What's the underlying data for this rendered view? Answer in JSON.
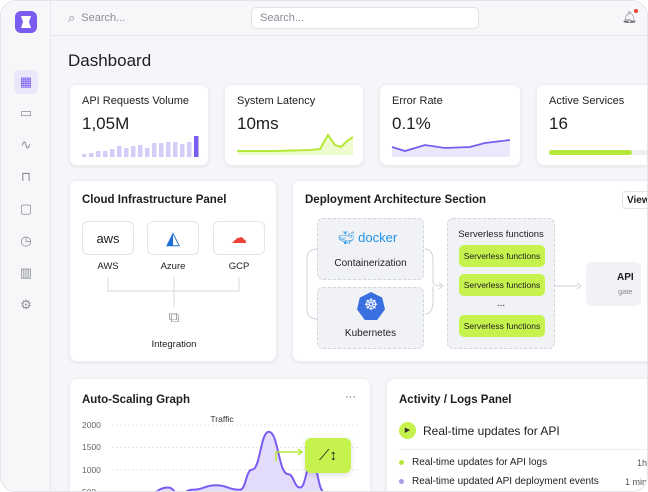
{
  "topbar": {
    "search_left": "Search...",
    "search_center_placeholder": "Search..."
  },
  "page_title": "Dashboard",
  "colors": {
    "accent": "#7b5cf0",
    "lime": "#c6f24d"
  },
  "metrics": [
    {
      "title": "API Requests Volume",
      "value": "1,05M"
    },
    {
      "title": "System Latency",
      "value": "10ms"
    },
    {
      "title": "Error Rate",
      "value": "0.1%"
    },
    {
      "title": "Active Services",
      "value": "16",
      "progress_percent": 75
    }
  ],
  "cloud": {
    "title": "Cloud Infrastructure Panel",
    "providers": [
      {
        "logo": "aws",
        "label": "AWS"
      },
      {
        "label": "Azure"
      },
      {
        "label": "GCP"
      }
    ],
    "integration": "Integration"
  },
  "deploy": {
    "title": "Deployment Architecture Section",
    "view": "View",
    "docker": "docker",
    "containerization": "Containerization",
    "kubernetes": "Kubernetes",
    "serverless_title": "Serverless functions",
    "functions": [
      "Serverless functions",
      "Serverless functions",
      "Serverless functions"
    ],
    "ellipsis": "...",
    "api": "API",
    "api_sub": "gate"
  },
  "autoscale": {
    "title": "Auto-Scaling Graph",
    "more": "···"
  },
  "chart_data": {
    "type": "area",
    "title": "Traffic",
    "yticks": [
      "2000",
      "1500",
      "1000",
      "500"
    ],
    "ylim": [
      500,
      2000
    ],
    "x": [
      0,
      10,
      20,
      25,
      30,
      40,
      50,
      55,
      62,
      70,
      75,
      80,
      85,
      90,
      95,
      100
    ],
    "values": [
      300,
      400,
      600,
      450,
      550,
      650,
      550,
      1000,
      1850,
      900,
      600,
      1150,
      500,
      500,
      500,
      500
    ]
  },
  "activity": {
    "title": "Activity / Logs Panel",
    "headline": "Real-time updates for API",
    "logs": [
      {
        "text": "Real-time updates for API logs",
        "time": "1h",
        "color": "#b5e83a"
      },
      {
        "text": "Real-time updated API deployment events",
        "time": "1 min",
        "color": "#a89bea"
      }
    ]
  }
}
